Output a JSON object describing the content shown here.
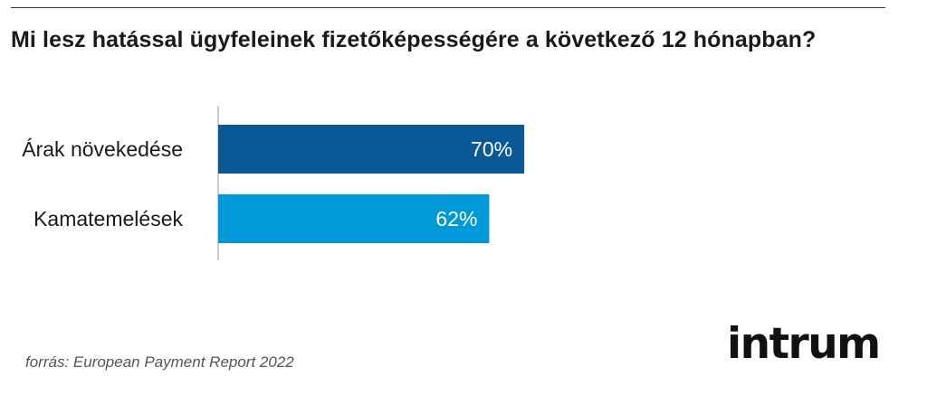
{
  "header": {
    "title": "Mi lesz hatással ügyfeleinek fizetőképességére a következő 12 hónapban?"
  },
  "chart_data": {
    "type": "bar",
    "orientation": "horizontal",
    "title": "Mi lesz hatással ügyfeleinek fizetőképességére a következő 12 hónapban?",
    "categories": [
      "Árak növekedése",
      "Kamatemelések"
    ],
    "values": [
      70,
      62
    ],
    "value_labels": [
      "70%",
      "62%"
    ],
    "colors": [
      "#0a5896",
      "#0099d8"
    ],
    "axis_color": "#cccccc",
    "xlim": [
      0,
      100
    ],
    "grid": false,
    "legend": "none"
  },
  "footer": {
    "source": "forrás: European Payment Report 2022",
    "logo_text": "intrum"
  }
}
